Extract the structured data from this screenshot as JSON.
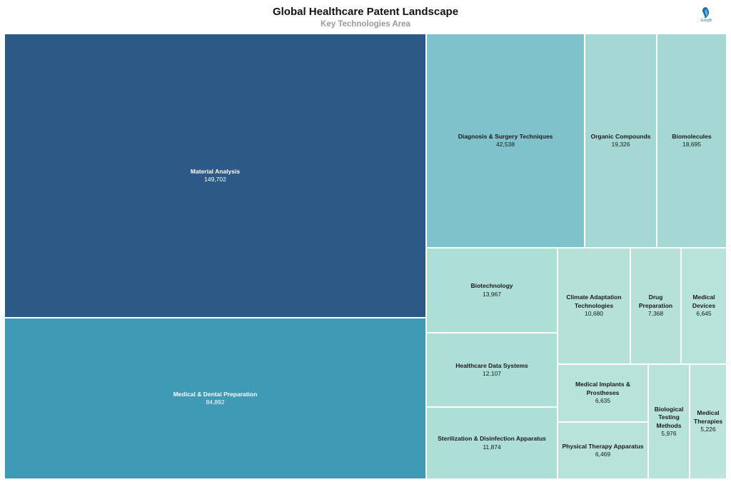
{
  "header": {
    "title": "Global Healthcare Patent Landscape",
    "subtitle": "Key Technologies Area",
    "logo_text": "GreyB"
  },
  "chart_data": {
    "type": "treemap",
    "title": "Global Healthcare Patent Landscape",
    "subtitle": "Key Technologies Area",
    "categories": [
      "Material Analysis",
      "Medical & Dental Preparation",
      "Diagnosis & Surgery Techniques",
      "Organic Compounds",
      "Biomolecules",
      "Biotechnology",
      "Healthcare Data Systems",
      "Sterilization & Disinfection Apparatus",
      "Climate Adaptation Technologies",
      "Drug Preparation",
      "Medical Devices",
      "Medical Implants & Prostheses",
      "Physical Therapy Apparatus",
      "Biological Testing Methods",
      "Medical Therapies"
    ],
    "values": [
      149702,
      84892,
      42538,
      19326,
      18695,
      13967,
      12107,
      11874,
      10680,
      7368,
      6645,
      6635,
      6469,
      5976,
      5226
    ],
    "value_labels": [
      "149,702",
      "84,892",
      "42,538",
      "19,326",
      "18,695",
      "13,967",
      "12,107",
      "11,874",
      "10,680",
      "7,368",
      "6,645",
      "6,635",
      "6,469",
      "5,976",
      "5,226"
    ],
    "colors": [
      "#2d5986",
      "#3f9ab6",
      "#80c2cb",
      "#a5d8d4",
      "#a5d8d4",
      "#aedfd6",
      "#aedfd6",
      "#aedfd6",
      "#b5e1d9",
      "#b5e1d9",
      "#b8e3da",
      "#b8e3da",
      "#b8e3da",
      "#b8e3da",
      "#bbe5dc"
    ]
  }
}
